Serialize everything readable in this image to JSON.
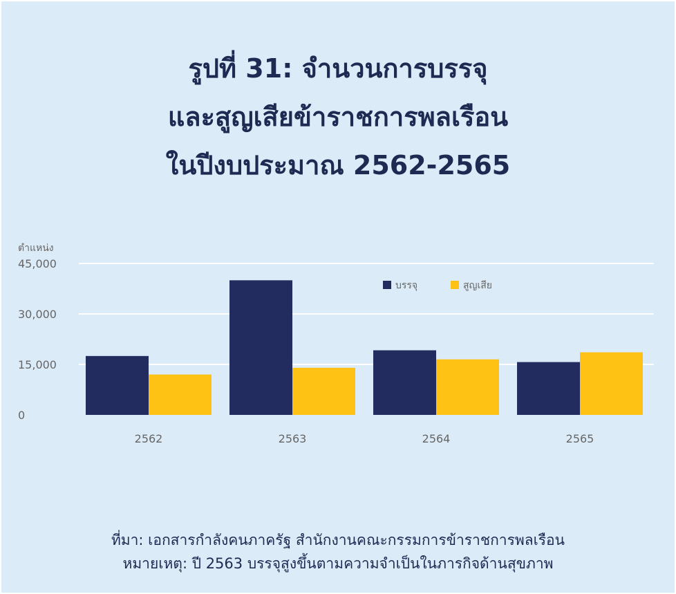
{
  "title_lines": [
    "รูปที่ 31: จำนวนการบรรจุ",
    "และสูญเสียข้าราชการพลเรือน",
    "ในปีงบประมาณ 2562-2565"
  ],
  "chart_data": {
    "type": "bar",
    "ylabel": "ตำแหน่ง",
    "categories": [
      "2562",
      "2563",
      "2564",
      "2565"
    ],
    "series": [
      {
        "name": "บรรจุ",
        "values": [
          17500,
          40000,
          19200,
          15700
        ]
      },
      {
        "name": "สูญเสีย",
        "values": [
          12000,
          14000,
          16500,
          18600
        ]
      }
    ],
    "ylim": [
      0,
      45000
    ],
    "yticks": [
      0,
      15000,
      30000,
      45000
    ],
    "ytick_labels": [
      "0",
      "15,000",
      "30,000",
      "45,000"
    ],
    "grid": true,
    "legend_position": "top-right"
  },
  "colors": {
    "background": "#dcebf8",
    "series": [
      "#222c5e",
      "#fec214"
    ],
    "text": "#1e2a52",
    "axis_text": "#666666",
    "grid": "#ffffff"
  },
  "footer": {
    "source": "ที่มา: เอกสารกำลังคนภาครัฐ สำนักงานคณะกรรมการข้าราชการพลเรือน",
    "note": "หมายเหตุ: ปี 2563 บรรจุสูงขึ้นตามความจำเป็นในภารกิจด้านสุขภาพ"
  }
}
